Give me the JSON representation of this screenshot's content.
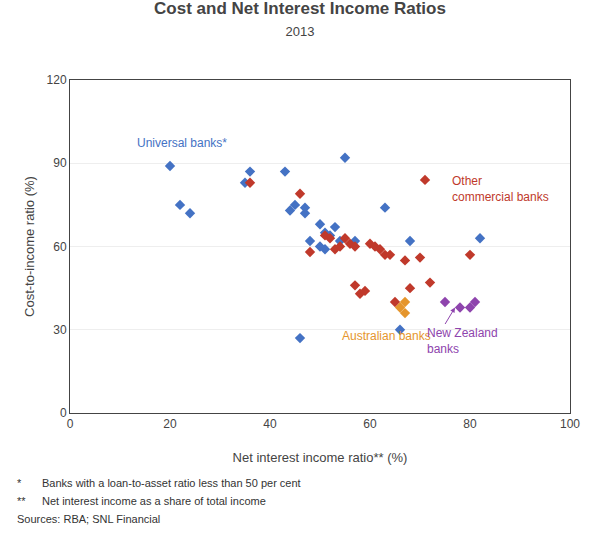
{
  "chart_data": {
    "type": "scatter",
    "title": "Cost and Net Interest Income Ratios",
    "subtitle": "2013",
    "xlabel": "Net interest income ratio** (%)",
    "ylabel": "Cost-to-income ratio (%)",
    "xlim": [
      0,
      100
    ],
    "ylim": [
      0,
      120
    ],
    "xticks": [
      0,
      20,
      40,
      60,
      80,
      100
    ],
    "yticks": [
      0,
      30,
      60,
      90,
      120
    ],
    "grid": "y",
    "marker": "diamond",
    "series": [
      {
        "color": "#4472c4",
        "x": [
          20,
          22,
          24,
          35,
          36,
          43,
          44,
          45,
          47,
          47,
          48,
          50,
          50,
          51,
          51,
          52,
          53,
          54,
          55,
          57,
          63,
          68,
          82
        ],
        "values": [
          89,
          75,
          72,
          83,
          87,
          87,
          73,
          75,
          74,
          72,
          62,
          68,
          60,
          65,
          59,
          64,
          67,
          62,
          92,
          62,
          74,
          62,
          63
        ]
      },
      {
        "color": "#c0392b",
        "x": [
          36,
          46,
          48,
          51,
          52,
          53,
          54,
          55,
          56,
          57,
          57,
          58,
          59,
          60,
          61,
          62,
          63,
          64,
          65,
          67,
          68,
          70,
          71,
          72,
          80
        ],
        "values": [
          83,
          79,
          58,
          64,
          63,
          59,
          60,
          63,
          61,
          60,
          46,
          43,
          44,
          61,
          60,
          59,
          57,
          57,
          40,
          55,
          45,
          56,
          84,
          47,
          57
        ]
      },
      {
        "color": "#e5952c",
        "x": [
          66,
          67,
          67
        ],
        "values": [
          38,
          36,
          40
        ]
      },
      {
        "color": "#8e44ad",
        "x": [
          75,
          78,
          80,
          81
        ],
        "values": [
          40,
          38,
          38,
          40
        ]
      },
      {
        "color": "#4472c4",
        "x": [
          66,
          46
        ],
        "values": [
          30,
          27
        ]
      }
    ],
    "annotations": [
      {
        "text": "Universal banks*",
        "x": 13,
        "y": 94,
        "color": "#4472c4"
      },
      {
        "text": "Other\ncommercial banks",
        "x": 76,
        "y": 87,
        "color": "#c0392b"
      },
      {
        "text": "Australian banks",
        "x": 54,
        "y": 31,
        "color": "#e5952c"
      },
      {
        "text": "New Zealand\nbanks",
        "x": 71,
        "y": 20,
        "color": "#8e44ad",
        "arrow": [
          77,
          38
        ]
      }
    ],
    "footnotes": [
      {
        "mark": "*",
        "text": "Banks with a loan-to-asset ratio less than 50 per cent"
      },
      {
        "mark": "**",
        "text": "Net interest income as a share of total income"
      },
      {
        "text": "Sources: RBA; SNL Financial"
      }
    ]
  }
}
